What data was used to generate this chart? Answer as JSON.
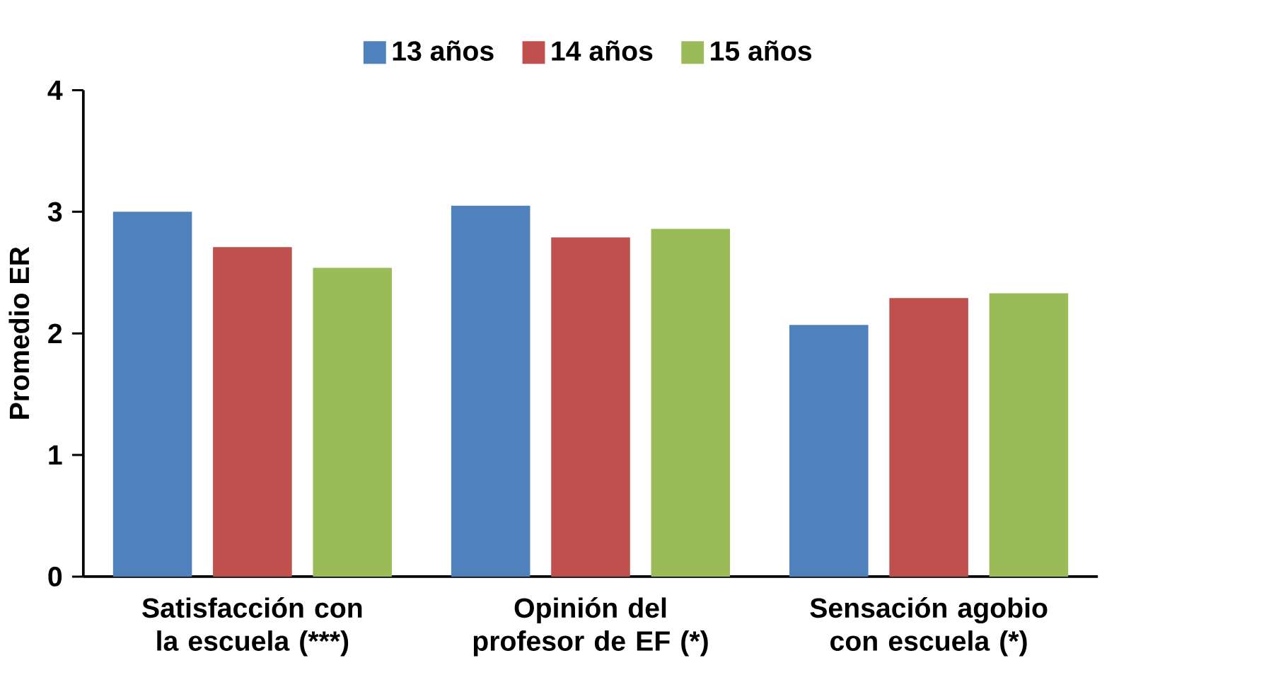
{
  "chart_data": {
    "type": "bar",
    "ylabel": "Promedio ER",
    "categories": [
      "Satisfacción con la escuela (***)",
      "Opinión del profesor de EF (*)",
      "Sensación agobio con escuela (*)"
    ],
    "series": [
      {
        "name": "13 años",
        "color": "#4f81bd",
        "values": [
          3.0,
          3.05,
          2.07
        ]
      },
      {
        "name": "14 años",
        "color": "#c0504d",
        "values": [
          2.71,
          2.79,
          2.29
        ]
      },
      {
        "name": "15 años",
        "color": "#9bbb59",
        "values": [
          2.54,
          2.86,
          2.33
        ]
      }
    ],
    "ylim": [
      0,
      4
    ],
    "yticks": [
      0,
      1,
      2,
      3,
      4
    ],
    "legend": "top"
  }
}
